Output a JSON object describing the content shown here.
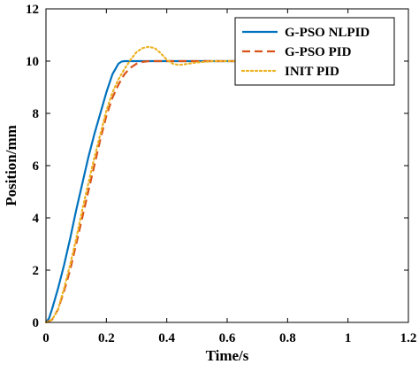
{
  "chart_data": {
    "type": "line",
    "xlabel": "Time/s",
    "ylabel": "Position/mm",
    "xlim": [
      0,
      1.2
    ],
    "ylim": [
      0,
      12
    ],
    "xticks": [
      0,
      0.2,
      0.4,
      0.6,
      0.8,
      1.0,
      1.2
    ],
    "xtick_labels": [
      "0",
      "0.2",
      "0.4",
      "0.6",
      "0.8",
      "1",
      "1.2"
    ],
    "yticks": [
      0,
      2,
      4,
      6,
      8,
      10,
      12
    ],
    "ytick_labels": [
      "0",
      "2",
      "4",
      "6",
      "8",
      "10",
      "12"
    ],
    "grid": false,
    "legend_position": "top-right",
    "series": [
      {
        "name": "G-PSO NLPID",
        "color": "#0072BD",
        "style": "solid",
        "x": [
          0,
          0.01,
          0.02,
          0.04,
          0.06,
          0.08,
          0.1,
          0.12,
          0.14,
          0.16,
          0.18,
          0.2,
          0.22,
          0.24,
          0.25,
          0.26,
          0.28,
          0.3,
          0.4,
          0.5,
          0.6,
          0.65
        ],
        "y": [
          0,
          0.15,
          0.5,
          1.3,
          2.2,
          3.2,
          4.3,
          5.3,
          6.3,
          7.2,
          8.0,
          8.8,
          9.5,
          9.9,
          9.98,
          10.0,
          10.0,
          10.0,
          10.0,
          10.0,
          10.0,
          10.0
        ]
      },
      {
        "name": "G-PSO PID",
        "color": "#D95319",
        "style": "dashed",
        "x": [
          0,
          0.02,
          0.04,
          0.06,
          0.08,
          0.1,
          0.12,
          0.14,
          0.16,
          0.18,
          0.2,
          0.22,
          0.24,
          0.26,
          0.28,
          0.3,
          0.32,
          0.34,
          0.36,
          0.4,
          0.5,
          0.6,
          0.65
        ],
        "y": [
          0,
          0.1,
          0.5,
          1.2,
          2.0,
          3.0,
          4.0,
          5.0,
          6.0,
          7.0,
          7.9,
          8.6,
          9.1,
          9.5,
          9.75,
          9.9,
          9.97,
          10.0,
          10.0,
          10.0,
          10.0,
          10.0,
          10.0
        ]
      },
      {
        "name": "INIT PID",
        "color": "#EDB120",
        "style": "dotted",
        "x": [
          0,
          0.02,
          0.04,
          0.06,
          0.08,
          0.1,
          0.12,
          0.14,
          0.16,
          0.18,
          0.2,
          0.22,
          0.24,
          0.26,
          0.28,
          0.3,
          0.32,
          0.34,
          0.36,
          0.38,
          0.4,
          0.42,
          0.44,
          0.46,
          0.5,
          0.55,
          0.6,
          0.65
        ],
        "y": [
          0,
          0.1,
          0.5,
          1.3,
          2.2,
          3.2,
          4.3,
          5.3,
          6.3,
          7.2,
          8.1,
          8.8,
          9.3,
          9.7,
          10.05,
          10.35,
          10.5,
          10.55,
          10.5,
          10.3,
          10.05,
          9.9,
          9.85,
          9.88,
          9.95,
          10.0,
          10.0,
          10.0
        ]
      }
    ]
  }
}
